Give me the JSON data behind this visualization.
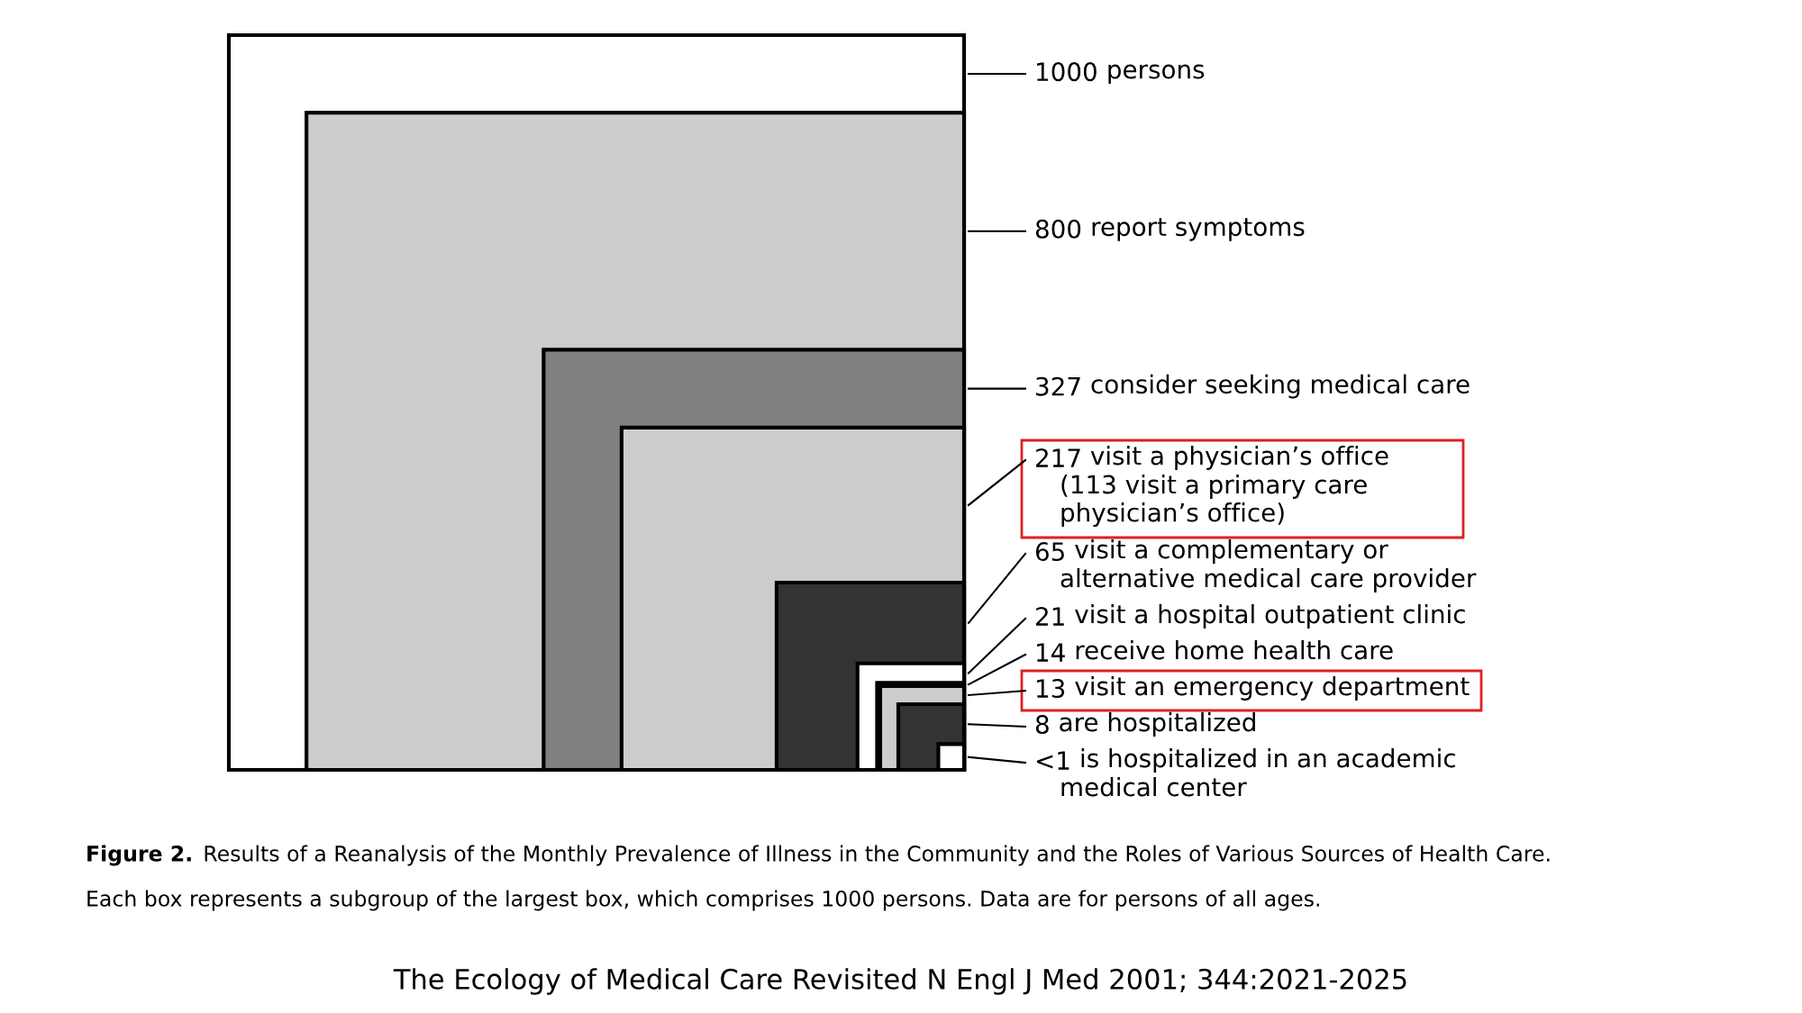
{
  "chart_data": {
    "type": "other",
    "title": "Figure 2.",
    "subtitle": "Results of a Reanalysis of the Monthly Prevalence of Illness in the Community and the Roles of Various Sources of Health Care.",
    "categories": [
      "persons",
      "report symptoms",
      "consider seeking medical care",
      "visit a physician’s office\n(113 visit a primary care\nphysician’s office)",
      "visit a complementary or\nalternative medical care provider",
      "visit a hospital outpatient clinic",
      "receive home health care",
      "visit an emergency department",
      "are hospitalized",
      "is hospitalized in an academic\nmedical center"
    ],
    "values": [
      1000,
      800,
      327,
      217,
      65,
      21,
      14,
      13,
      8,
      null
    ],
    "value_labels": [
      "1000",
      "800",
      "327",
      "217",
      "65",
      "21",
      "14",
      "13",
      "8",
      "<1"
    ],
    "colors": [
      "#ffffff",
      "#cccccc",
      "#808080",
      "#cccccc",
      "#333333",
      "#ffffff",
      "#808080",
      "#cccccc",
      "#333333",
      "#ffffff"
    ],
    "annotations": [
      "Each box represents a subgroup of the largest box, which comprises 1000 persons. Data are for persons of all ages.",
      "The Ecology of Medical Care Revisited N Engl J Med 2001; 344:2021-2025"
    ]
  }
}
